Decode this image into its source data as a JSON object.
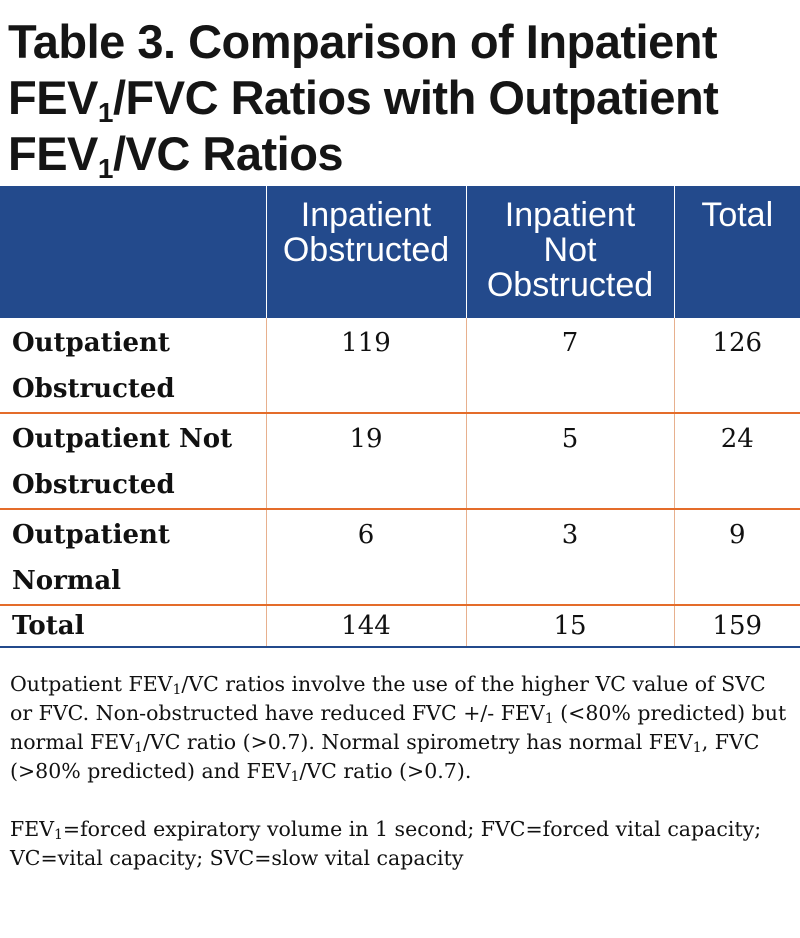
{
  "title": {
    "line1": "Table 3. Comparison of Inpatient",
    "line2_pre": "FEV",
    "line2_sub": "1",
    "line2_post": "/FVC Ratios with Outpatient",
    "line3_pre": "FEV",
    "line3_sub": "1",
    "line3_post": "/VC Ratios"
  },
  "table": {
    "headers": [
      "",
      "Inpatient Obstructed",
      "Inpatient Not Obstructed",
      "Total"
    ],
    "header_lines": {
      "h1": [
        "Inpatient",
        "Obstructed"
      ],
      "h2": [
        "Inpatient",
        "Not",
        "Obstructed"
      ],
      "h3": [
        "Total"
      ]
    },
    "rows": [
      {
        "label_lines": [
          "Outpatient",
          "Obstructed"
        ],
        "values": [
          "119",
          "7",
          "126"
        ]
      },
      {
        "label_lines": [
          "Outpatient Not",
          "Obstructed"
        ],
        "values": [
          "19",
          "5",
          "24"
        ]
      },
      {
        "label_lines": [
          "Outpatient",
          "Normal"
        ],
        "values": [
          "6",
          "3",
          "9"
        ]
      },
      {
        "label_lines": [
          "Total"
        ],
        "values": [
          "144",
          "15",
          "159"
        ]
      }
    ]
  },
  "notes": {
    "p1": {
      "a": "Outpatient FEV",
      "a_sub": "1",
      "b": "/VC ratios involve the use of the higher VC value of SVC or FVC.  Non-obstructed have reduced FVC +/- FEV",
      "b_sub": "1",
      "c": " (<80% predicted) but normal FEV",
      "c_sub": "1",
      "d": "/VC ratio (>0.7). Normal spirometry has normal FEV",
      "d_sub": "1",
      "e": ", FVC (>80% predicted) and FEV",
      "e_sub": "1",
      "f": "/VC ratio (>0.7)."
    },
    "p2": {
      "a": "FEV",
      "a_sub": "1",
      "b": "=forced expiratory volume in 1 second; FVC=forced vital capacity; VC=vital capacity; SVC=slow vital capacity"
    }
  },
  "colors": {
    "header_bg": "#234a8c",
    "row_divider": "#e46c2a",
    "column_divider": "#e7b08e"
  }
}
